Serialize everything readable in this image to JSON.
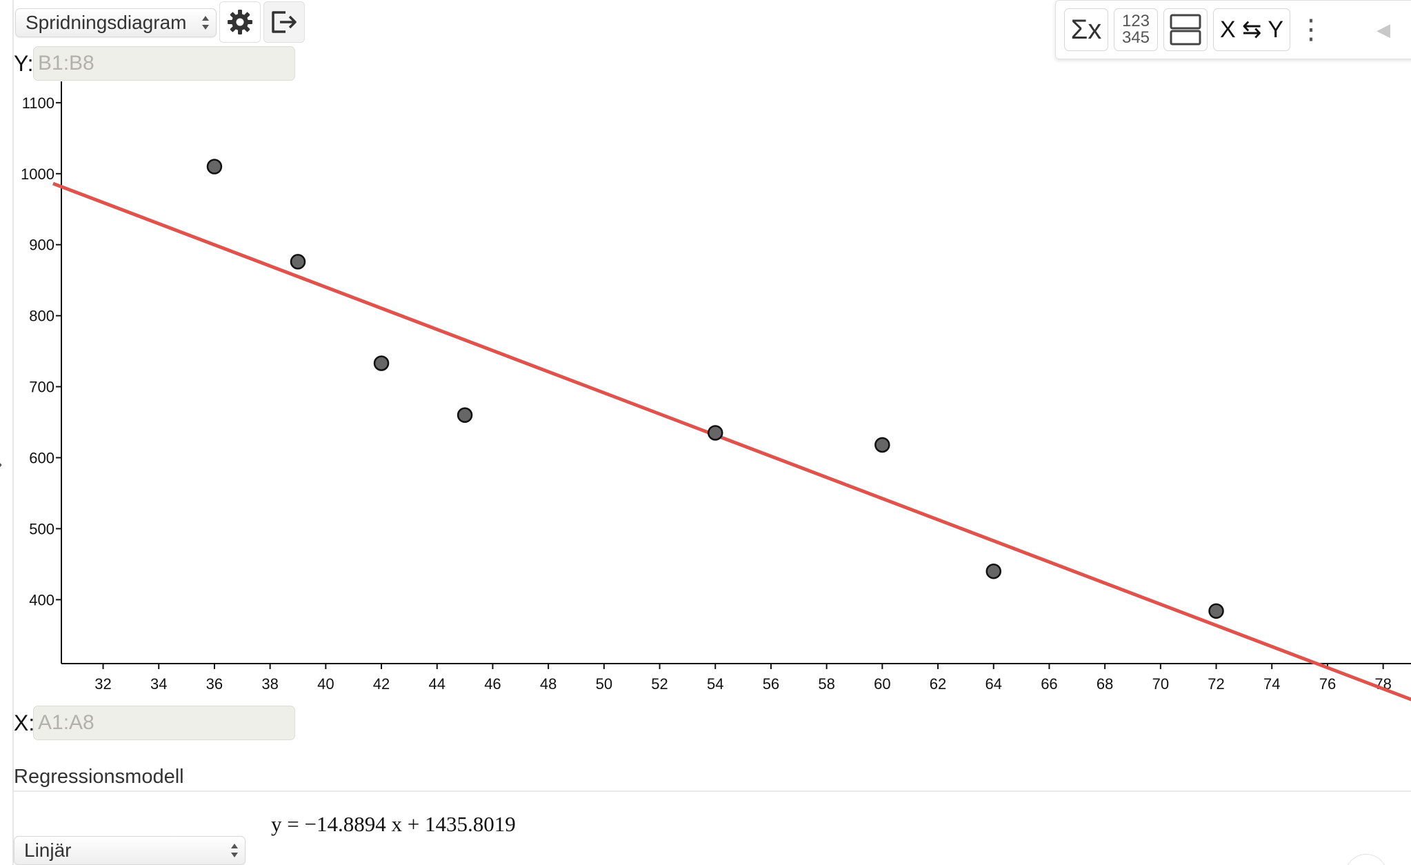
{
  "toolbar": {
    "plot_type": "Spridningsdiagram",
    "settings_icon": "gear-icon",
    "export_icon": "export-icon"
  },
  "stats_toolbar": {
    "sum_label": "Σx",
    "numbers_top": "123",
    "numbers_bottom": "345",
    "layout_icon": "layout-split-icon",
    "swap_label": "X ⇆ Y",
    "more_label": "⋮",
    "collapse_label": "◀"
  },
  "y_axis_input": {
    "label": "Y:",
    "placeholder": "B1:B8"
  },
  "x_axis_input": {
    "label": "X:",
    "placeholder": "A1:A8"
  },
  "chart_data": {
    "type": "scatter",
    "title": "",
    "xlabel": "",
    "ylabel": "",
    "xlim": [
      30.5,
      79
    ],
    "ylim": [
      310,
      1130
    ],
    "x_ticks": [
      32,
      34,
      36,
      38,
      40,
      42,
      44,
      46,
      48,
      50,
      52,
      54,
      56,
      58,
      60,
      62,
      64,
      66,
      68,
      70,
      72,
      74,
      76,
      78
    ],
    "y_ticks": [
      400,
      500,
      600,
      700,
      800,
      900,
      1000,
      1100
    ],
    "grid": false,
    "series": [
      {
        "x": [
          36,
          39,
          42,
          45,
          54,
          60,
          64,
          72
        ],
        "y": [
          1010,
          876,
          733,
          660,
          635,
          618,
          440,
          384
        ]
      }
    ],
    "regression": {
      "type": "linear",
      "slope": -14.8894,
      "intercept": 1435.8019,
      "color": "#e0524c"
    },
    "point_color": "#666666"
  },
  "regression": {
    "title": "Regressionsmodell",
    "equation": "y = −14.8894 x + 1435.8019",
    "model": "Linjär"
  }
}
